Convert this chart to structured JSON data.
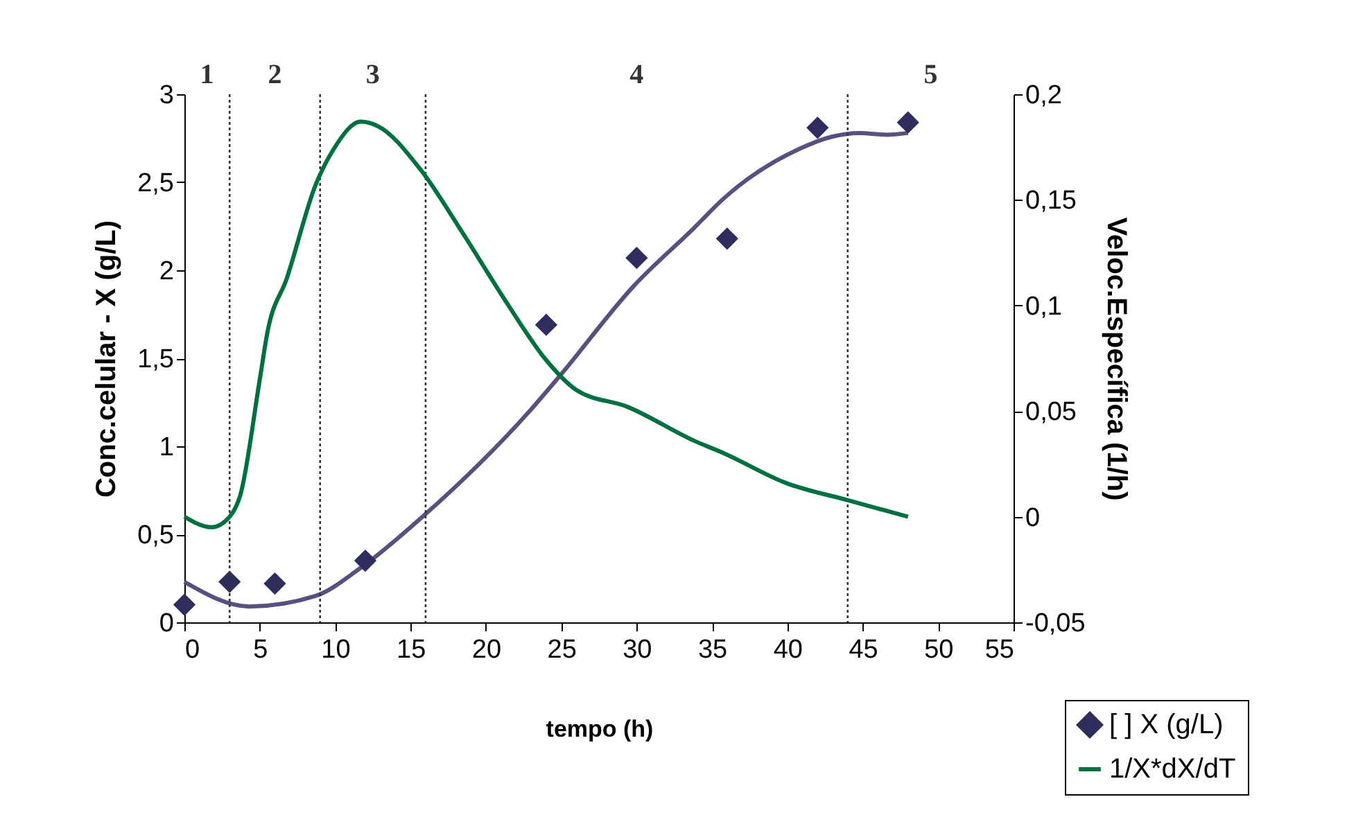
{
  "chart_data": {
    "type": "line",
    "xlabel": "tempo (h)",
    "ylabel": "Conc.celular - X (g/L)",
    "y2label": "Veloc.Específica (1/h)",
    "xlim": [
      0,
      55
    ],
    "xticks": [
      0,
      5,
      10,
      15,
      20,
      25,
      30,
      35,
      40,
      45,
      50,
      55
    ],
    "ylim": [
      0,
      3
    ],
    "yticks": [
      0,
      {
        "value": 0.5,
        "label": "0,5"
      },
      1,
      {
        "value": 1.5,
        "label": "1,5"
      },
      2,
      {
        "value": 2.5,
        "label": "2,5"
      },
      3
    ],
    "y2lim": [
      -0.05,
      0.2
    ],
    "y2ticks": [
      {
        "value": -0.05,
        "label": "-0,05"
      },
      0,
      {
        "value": 0.05,
        "label": "0,05"
      },
      {
        "value": 0.1,
        "label": "0,1"
      },
      {
        "value": 0.15,
        "label": "0,15"
      },
      {
        "value": 0.2,
        "label": "0,2"
      }
    ],
    "grid": false,
    "legend": "bottom right",
    "series": [
      {
        "color": "#575080",
        "x": [
          0,
          4.3,
          8.7,
          11.7,
          15.8,
          23,
          25,
          29.8,
          33.8,
          35.8,
          40.8,
          43,
          44.8,
          46.6,
          48
        ],
        "values": [
          0.23,
          0.09,
          0.15,
          0.31,
          0.6,
          1.21,
          1.41,
          1.91,
          2.24,
          2.41,
          2.69,
          2.76,
          2.78,
          2.77,
          2.78
        ]
      },
      {
        "type": "scatter",
        "name": "[ ] X (g/L)",
        "color": "#2e2d5e",
        "marker": "diamond",
        "x": [
          0,
          3,
          6,
          12,
          24,
          30,
          36,
          42,
          48
        ],
        "values": [
          0.1,
          0.23,
          0.22,
          0.35,
          1.69,
          2.07,
          2.18,
          2.81,
          2.84
        ]
      },
      {
        "name": "1/X*dX/dT",
        "color": "#007040",
        "axis": "y2",
        "x": [
          0,
          1.8,
          3,
          3.7,
          5,
          5.5,
          6.8,
          8.7,
          9.9,
          11.7,
          12.8,
          15.7,
          18.4,
          21.5,
          23.9,
          26,
          29.4,
          33.8,
          35.8,
          39.9,
          43.9,
          48
        ],
        "values": [
          0,
          -0.005,
          0,
          0.01,
          0.065,
          0.087,
          0.113,
          0.157,
          0.174,
          0.187,
          0.185,
          0.164,
          0.135,
          0.1,
          0.075,
          0.06,
          0.052,
          0.036,
          0.03,
          0.016,
          0.008,
          0
        ]
      }
    ],
    "ref_lines": [
      {
        "axis": "x",
        "value": 3,
        "line_style": "dotted"
      },
      {
        "axis": "x",
        "value": 9,
        "line_style": "dotted"
      },
      {
        "axis": "x",
        "value": 16,
        "line_style": "dotted"
      },
      {
        "axis": "x",
        "value": 44,
        "line_style": "dotted"
      }
    ],
    "annotations": [
      "1",
      "2",
      "3",
      "4",
      "5"
    ]
  }
}
